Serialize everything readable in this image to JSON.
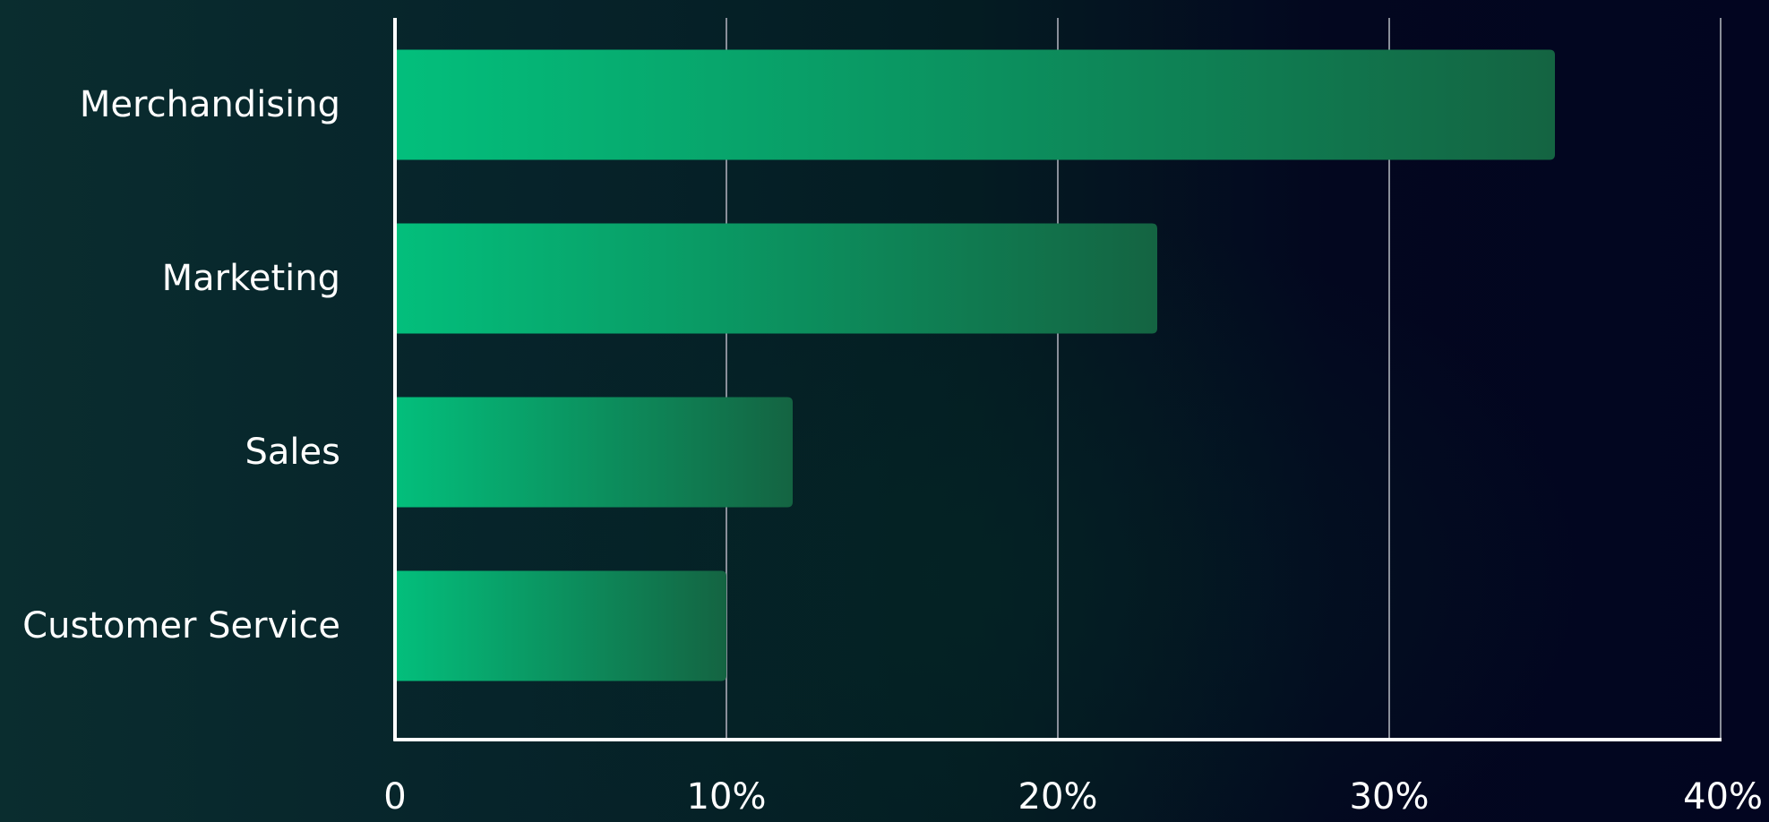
{
  "chart_data": {
    "type": "bar",
    "orientation": "horizontal",
    "categories": [
      "Merchandising",
      "Marketing",
      "Sales",
      "Customer Service"
    ],
    "values": [
      35,
      23,
      12,
      10
    ],
    "xlim": [
      0,
      40
    ],
    "x_tick_values": [
      0,
      10,
      20,
      30,
      40
    ],
    "x_tick_labels": [
      "0",
      "10%",
      "20%",
      "30%",
      "40%"
    ],
    "grid": "vertical",
    "legend": "none",
    "colors": {
      "bar_start": "#03bf7c",
      "bar_end": "#146442",
      "axis": "#ffffff",
      "grid": "#8a8f9a",
      "text": "#ffffff"
    }
  }
}
